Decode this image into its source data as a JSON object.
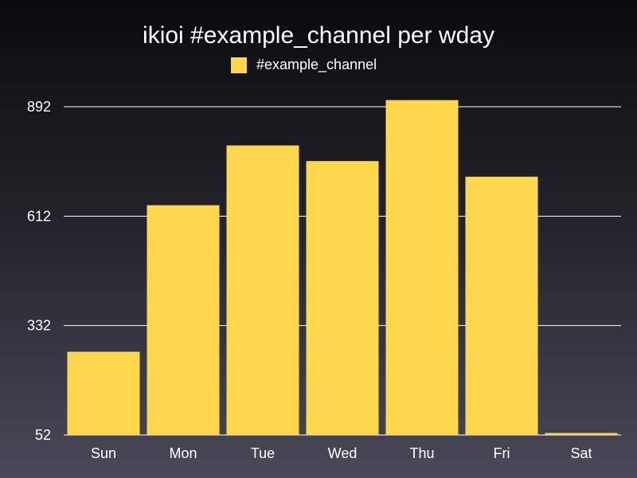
{
  "colors": {
    "bar": "#fed74e",
    "grid": "#ffffff",
    "text": "#ffffff"
  },
  "chart_data": {
    "type": "bar",
    "title": "ikioi #example_channel per wday",
    "xlabel": "",
    "ylabel": "",
    "categories": [
      "Sun",
      "Mon",
      "Tue",
      "Wed",
      "Thu",
      "Fri",
      "Sat"
    ],
    "series": [
      {
        "name": "#example_channel",
        "values": [
          265,
          640,
          793,
          753,
          909,
          713,
          57
        ]
      }
    ],
    "y_ticks": [
      "52",
      "332",
      "612",
      "892"
    ],
    "ylim": [
      52,
      892
    ],
    "grid": true,
    "legend": "top-center"
  }
}
